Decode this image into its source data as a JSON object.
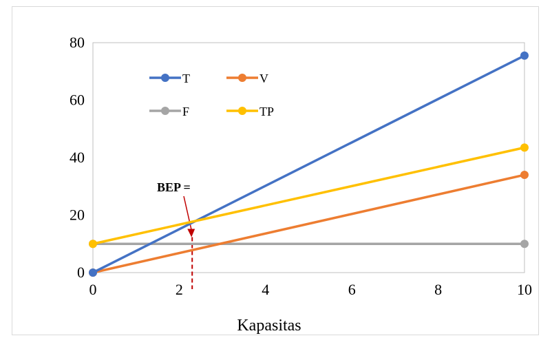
{
  "chart_data": {
    "type": "line",
    "title": "",
    "xlabel": "Kapasitas",
    "ylabel": "",
    "xlim": [
      0,
      10
    ],
    "ylim": [
      0,
      80
    ],
    "x_ticks": [
      0,
      2,
      4,
      6,
      8,
      10
    ],
    "y_ticks": [
      0,
      20,
      40,
      60,
      80
    ],
    "grid": false,
    "legend_position": "top-left",
    "series": [
      {
        "name": "T",
        "color": "#4472c4",
        "x": [
          0,
          10
        ],
        "y": [
          0,
          75.5
        ]
      },
      {
        "name": "V",
        "color": "#ed7d31",
        "x": [
          0,
          10
        ],
        "y": [
          0,
          34
        ]
      },
      {
        "name": "F",
        "color": "#a5a5a5",
        "x": [
          0,
          10
        ],
        "y": [
          10,
          10
        ]
      },
      {
        "name": "TP",
        "color": "#ffc000",
        "x": [
          0,
          10
        ],
        "y": [
          10,
          43.5
        ]
      }
    ],
    "annotations": [
      {
        "text": "BEP =",
        "arrow_color": "#c00000",
        "arrow_to": [
          2.3,
          13.3
        ],
        "drop_line_x": 2.3
      }
    ]
  }
}
